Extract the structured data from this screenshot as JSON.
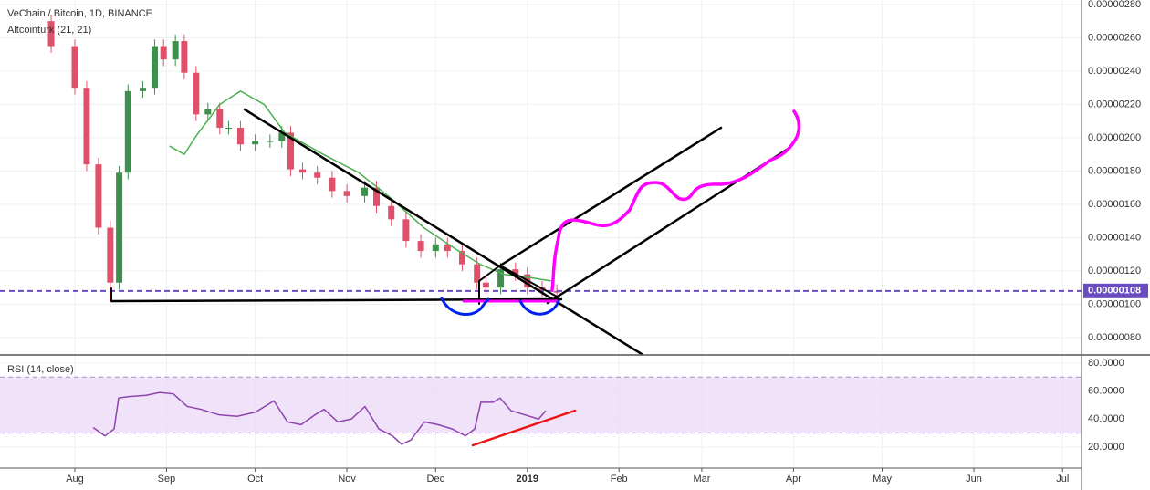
{
  "chart_data": [
    {
      "type": "candlestick",
      "title": "VeChain / Bitcoin, 1D, BINANCE",
      "up_color": "#3f8f4f",
      "down_color": "#e0506a",
      "x": [
        -8,
        0,
        4,
        8,
        12,
        15,
        18,
        23,
        27,
        30,
        34,
        37,
        41,
        45,
        49,
        52,
        56,
        61,
        66,
        70,
        73,
        77,
        82,
        87,
        92,
        98,
        102,
        107,
        112,
        117,
        122,
        126,
        131,
        136,
        139,
        144,
        149,
        153,
        158,
        163
      ],
      "open": [
        2.7e-06,
        2.55e-06,
        2.3e-06,
        1.84e-06,
        1.46e-06,
        1.13e-06,
        1.79e-06,
        2.28e-06,
        2.3e-06,
        2.55e-06,
        2.47e-06,
        2.58e-06,
        2.39e-06,
        2.14e-06,
        2.17e-06,
        2.06e-06,
        2.06e-06,
        1.96e-06,
        1.98e-06,
        1.98e-06,
        2.03e-06,
        1.81e-06,
        1.79e-06,
        1.76e-06,
        1.68e-06,
        1.65e-06,
        1.7e-06,
        1.59e-06,
        1.51e-06,
        1.38e-06,
        1.32e-06,
        1.36e-06,
        1.32e-06,
        1.24e-06,
        1.13e-06,
        1.1e-06,
        1.21e-06,
        1.18e-06,
        1.1e-06,
        1.08e-06
      ],
      "high": [
        2.74e-06,
        2.59e-06,
        2.34e-06,
        1.88e-06,
        1.5e-06,
        1.83e-06,
        2.32e-06,
        2.34e-06,
        2.59e-06,
        2.59e-06,
        2.62e-06,
        2.62e-06,
        2.43e-06,
        2.21e-06,
        2.21e-06,
        2.1e-06,
        2.1e-06,
        2.02e-06,
        2.02e-06,
        2.07e-06,
        2.07e-06,
        1.85e-06,
        1.83e-06,
        1.8e-06,
        1.72e-06,
        1.74e-06,
        1.74e-06,
        1.63e-06,
        1.55e-06,
        1.42e-06,
        1.4e-06,
        1.4e-06,
        1.36e-06,
        1.28e-06,
        1.17e-06,
        1.25e-06,
        1.25e-06,
        1.22e-06,
        1.14e-06,
        1.12e-06
      ],
      "low": [
        2.51e-06,
        2.26e-06,
        1.8e-06,
        1.42e-06,
        1.02e-06,
        1.09e-06,
        1.75e-06,
        2.24e-06,
        2.26e-06,
        2.43e-06,
        2.43e-06,
        2.35e-06,
        2.1e-06,
        2.1e-06,
        2.02e-06,
        2.02e-06,
        1.92e-06,
        1.92e-06,
        1.94e-06,
        1.94e-06,
        1.77e-06,
        1.75e-06,
        1.72e-06,
        1.64e-06,
        1.61e-06,
        1.61e-06,
        1.55e-06,
        1.47e-06,
        1.34e-06,
        1.28e-06,
        1.28e-06,
        1.28e-06,
        1.2e-06,
        1.09e-06,
        1.06e-06,
        1.06e-06,
        1.14e-06,
        1.06e-06,
        1.04e-06,
        1.03e-06
      ],
      "close": [
        2.55e-06,
        2.3e-06,
        1.84e-06,
        1.46e-06,
        1.13e-06,
        1.79e-06,
        2.28e-06,
        2.3e-06,
        2.55e-06,
        2.47e-06,
        2.58e-06,
        2.39e-06,
        2.14e-06,
        2.17e-06,
        2.06e-06,
        2.06e-06,
        1.96e-06,
        1.98e-06,
        1.98e-06,
        2.03e-06,
        1.81e-06,
        1.79e-06,
        1.76e-06,
        1.68e-06,
        1.65e-06,
        1.7e-06,
        1.59e-06,
        1.51e-06,
        1.38e-06,
        1.32e-06,
        1.36e-06,
        1.32e-06,
        1.24e-06,
        1.13e-06,
        1.1e-06,
        1.21e-06,
        1.18e-06,
        1.1e-06,
        1.08e-06,
        1.07e-06
      ],
      "series": [
        {
          "name": "Altcointurk (21, 21)",
          "color": "#4caf50",
          "x": [
            32,
            37,
            41,
            49,
            56,
            64,
            71,
            84,
            96,
            106,
            118,
            128,
            137,
            145,
            154,
            161
          ],
          "values": [
            1.95e-06,
            1.9e-06,
            2.01e-06,
            2.2e-06,
            2.28e-06,
            2.2e-06,
            2.03e-06,
            1.9e-06,
            1.79e-06,
            1.65e-06,
            1.46e-06,
            1.34e-06,
            1.24e-06,
            1.18e-06,
            1.16e-06,
            1.14e-06
          ]
        }
      ],
      "price_line": {
        "value": 1.08e-06,
        "label": "0.00000108",
        "color": "#6a4cc0"
      },
      "xlim": [
        -25.3,
        340.4
      ],
      "ylim": [
        7.01e-07,
        2.827e-06
      ],
      "yticks": [
        {
          "value": 8e-07,
          "label": "0.00000080"
        },
        {
          "value": 1e-06,
          "label": "0.00000100"
        },
        {
          "value": 1.2e-06,
          "label": "0.00000120"
        },
        {
          "value": 1.4e-06,
          "label": "0.00000140"
        },
        {
          "value": 1.6e-06,
          "label": "0.00000160"
        },
        {
          "value": 1.8e-06,
          "label": "0.00000180"
        },
        {
          "value": 2e-06,
          "label": "0.00000200"
        },
        {
          "value": 2.2e-06,
          "label": "0.00000220"
        },
        {
          "value": 2.4e-06,
          "label": "0.00000240"
        },
        {
          "value": 2.6e-06,
          "label": "0.00000260"
        },
        {
          "value": 2.8e-06,
          "label": "0.00000280"
        }
      ],
      "grid": true
    },
    {
      "type": "line",
      "title": "RSI (14, close)",
      "series": [
        {
          "color": "#8e44ad",
          "x": [
            6.2,
            10.2,
            13.3,
            14.8,
            17.9,
            24.1,
            28.7,
            33.3,
            38,
            42.6,
            48.8,
            54.9,
            61.1,
            67.3,
            71.9,
            76.5,
            81.2,
            84.3,
            88.9,
            93.5,
            98.1,
            102.8,
            107.4,
            110.5,
            113.6,
            118.2,
            122.8,
            127.5,
            132.1,
            135.2,
            137.3,
            141.4,
            143.8,
            147.5,
            152.2,
            156.8,
            159.3
          ],
          "values": [
            34,
            28,
            33,
            55,
            56,
            57,
            59,
            58,
            49,
            47,
            43,
            42,
            45,
            53,
            38,
            36,
            43,
            47,
            38,
            40,
            49,
            33,
            28,
            22,
            25,
            38,
            36,
            33,
            28,
            33,
            52,
            52,
            55,
            46,
            43,
            40,
            46
          ]
        }
      ],
      "rsi_band": [
        30,
        70
      ],
      "band_color": "#e9d5f7",
      "xlim": [
        -25.3,
        340.4
      ],
      "ylim": [
        5.6,
        85.2
      ],
      "yticks": [
        {
          "value": 20,
          "label": "20.0000"
        },
        {
          "value": 40,
          "label": "40.0000"
        },
        {
          "value": 60,
          "label": "60.0000"
        },
        {
          "value": 80,
          "label": "80.0000"
        }
      ],
      "xticks": [
        {
          "value": 0,
          "label": "Aug"
        },
        {
          "value": 31,
          "label": "Sep"
        },
        {
          "value": 61,
          "label": "Oct"
        },
        {
          "value": 92,
          "label": "Nov"
        },
        {
          "value": 122,
          "label": "Dec"
        },
        {
          "value": 153,
          "label": "2019"
        },
        {
          "value": 184,
          "label": "Feb"
        },
        {
          "value": 212,
          "label": "Mar"
        },
        {
          "value": 243,
          "label": "Apr"
        },
        {
          "value": 273,
          "label": "May"
        },
        {
          "value": 304,
          "label": "Jun"
        },
        {
          "value": 334,
          "label": "Jul"
        }
      ],
      "grid": true
    }
  ]
}
